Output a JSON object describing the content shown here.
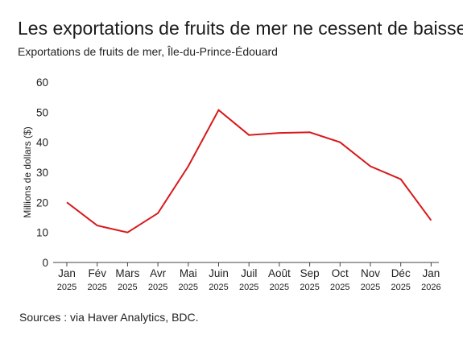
{
  "chart_data": {
    "type": "line",
    "title": "Les exportations de fruits de mer ne cessent de baisser",
    "subtitle": "Exportations de fruits de mer, Île-du-Prince-Édouard",
    "ylabel": "Millions de dollars ($)",
    "xlabel": "",
    "ylim": [
      0,
      60
    ],
    "yticks": [
      0,
      10,
      20,
      30,
      40,
      50,
      60
    ],
    "grid": false,
    "categories": [
      {
        "month": "Jan",
        "year": "2025"
      },
      {
        "month": "Fév",
        "year": "2025"
      },
      {
        "month": "Mars",
        "year": "2025"
      },
      {
        "month": "Avr",
        "year": "2025"
      },
      {
        "month": "Mai",
        "year": "2025"
      },
      {
        "month": "Juin",
        "year": "2025"
      },
      {
        "month": "Juil",
        "year": "2025"
      },
      {
        "month": "Août",
        "year": "2025"
      },
      {
        "month": "Sep",
        "year": "2025"
      },
      {
        "month": "Oct",
        "year": "2025"
      },
      {
        "month": "Nov",
        "year": "2025"
      },
      {
        "month": "Déc",
        "year": "2025"
      },
      {
        "month": "Jan",
        "year": "2026"
      }
    ],
    "series": [
      {
        "values": [
          20,
          12.3,
          10,
          16.4,
          32,
          50.7,
          42.4,
          43.1,
          43.3,
          40,
          32,
          27.7,
          14
        ]
      }
    ],
    "line_color": "#d7191c"
  },
  "source": "Sources : via Haver Analytics, BDC."
}
